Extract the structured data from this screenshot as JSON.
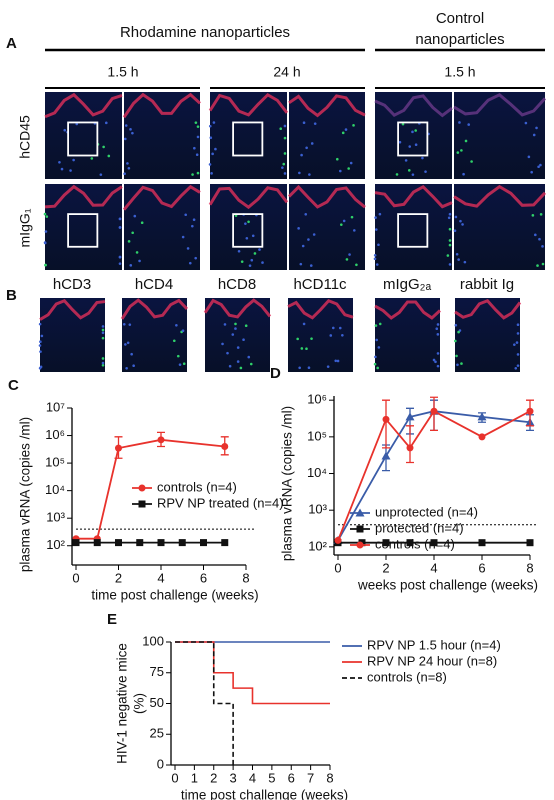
{
  "panels": {
    "A": {
      "letter": "A",
      "headers": [
        "Rhodamine nanoparticles",
        "Control nanoparticles"
      ],
      "times": [
        "1.5 h",
        "24 h",
        "1.5 h"
      ],
      "rows": [
        "hCD45",
        "mIgG₁"
      ]
    },
    "B": {
      "letter": "B",
      "labels": [
        "hCD3",
        "hCD4",
        "hCD8",
        "hCD11c",
        "mIgG₂ₐ",
        "rabbit Ig"
      ]
    }
  },
  "chart_data": [
    {
      "type": "line",
      "panel": "C",
      "ylabel": "plasma vRNA (copies /ml)",
      "xlabel": "time post challenge (weeks)",
      "log_y": true,
      "ylim": [
        20,
        10000000
      ],
      "xlim": [
        0,
        8
      ],
      "threshold": 400,
      "legend_loc": "center right",
      "yticks": [
        {
          "value": 100,
          "label": "10²"
        },
        {
          "value": 1000,
          "label": "10³"
        },
        {
          "value": 10000,
          "label": "10⁴"
        },
        {
          "value": 100000,
          "label": "10⁵"
        },
        {
          "value": 1000000,
          "label": "10⁶"
        },
        {
          "value": 10000000,
          "label": "10⁷"
        }
      ],
      "xticks": [
        0,
        2,
        4,
        6,
        8
      ],
      "series": [
        {
          "name": "controls (n=4)",
          "color": "#e8322c",
          "marker": "circle",
          "x": [
            0,
            1,
            2,
            4,
            7
          ],
          "values": [
            180,
            180,
            350000,
            700000,
            400000
          ],
          "lower": [
            null,
            null,
            150000,
            400000,
            200000
          ],
          "upper": [
            null,
            null,
            900000,
            1300000,
            900000
          ]
        },
        {
          "name": "RPV NP treated (n=4)",
          "color": "#111111",
          "marker": "square",
          "x": [
            0,
            1,
            2,
            3,
            4,
            5,
            6,
            7
          ],
          "values": [
            130,
            130,
            130,
            130,
            130,
            130,
            130,
            130
          ]
        }
      ]
    },
    {
      "type": "line",
      "panel": "D",
      "ylabel": "plasma vRNA (copies /ml)",
      "xlabel": "weeks post challenge (weeks)",
      "log_y": true,
      "ylim": [
        60,
        1300000
      ],
      "xlim": [
        0,
        8
      ],
      "threshold": 400,
      "legend_loc": "lower right",
      "yticks": [
        {
          "value": 100,
          "label": "10²"
        },
        {
          "value": 1000,
          "label": "10³"
        },
        {
          "value": 10000,
          "label": "10⁴"
        },
        {
          "value": 100000,
          "label": "10⁵"
        },
        {
          "value": 1000000,
          "label": "10⁶"
        }
      ],
      "xticks": [
        0,
        2,
        4,
        6,
        8
      ],
      "series": [
        {
          "name": "unprotected (n=4)",
          "color": "#3a5ca8",
          "marker": "triangle",
          "x": [
            0,
            2,
            3,
            4,
            6,
            8
          ],
          "values": [
            150,
            30000,
            350000,
            500000,
            350000,
            250000
          ],
          "lower": [
            null,
            12000,
            120000,
            150000,
            250000,
            150000
          ],
          "upper": [
            null,
            60000,
            600000,
            1000000,
            450000,
            400000
          ]
        },
        {
          "name": "protected (n=4)",
          "color": "#111111",
          "marker": "square",
          "x": [
            0,
            1,
            2,
            3,
            4,
            6,
            8
          ],
          "values": [
            130,
            130,
            130,
            130,
            130,
            130,
            130
          ]
        },
        {
          "name": "controls (n=4)",
          "color": "#e8322c",
          "marker": "circle",
          "x": [
            0,
            2,
            3,
            4,
            6,
            8
          ],
          "values": [
            150,
            300000,
            50000,
            500000,
            100000,
            500000
          ],
          "lower": [
            null,
            50000,
            20000,
            150000,
            null,
            200000
          ],
          "upper": [
            null,
            1000000,
            200000,
            1200000,
            null,
            1000000
          ]
        }
      ]
    },
    {
      "type": "step",
      "panel": "E",
      "ylabel": [
        "HIV-1 negative mice",
        "(%)"
      ],
      "xlabel": "time post challenge (weeks)",
      "log_y": false,
      "ylim": [
        0,
        100
      ],
      "xlim": [
        0,
        8
      ],
      "legend_loc": "outside right",
      "yticks": [
        0,
        25,
        50,
        75,
        100
      ],
      "xticks": [
        0,
        1,
        2,
        3,
        4,
        5,
        6,
        7,
        8
      ],
      "series": [
        {
          "name": "RPV NP 1.5 hour (n=4)",
          "color": "#3a5ca8",
          "dash": false,
          "x": [
            0,
            8
          ],
          "values": [
            100,
            100
          ]
        },
        {
          "name": "RPV NP 24 hour (n=8)",
          "color": "#e8322c",
          "dash": false,
          "x": [
            0,
            2,
            3,
            4,
            8
          ],
          "values": [
            100,
            75,
            62.5,
            50,
            50
          ]
        },
        {
          "name": "controls (n=8)",
          "color": "#111111",
          "dash": true,
          "x": [
            0,
            2,
            3
          ],
          "values": [
            100,
            50,
            0
          ]
        }
      ]
    }
  ]
}
